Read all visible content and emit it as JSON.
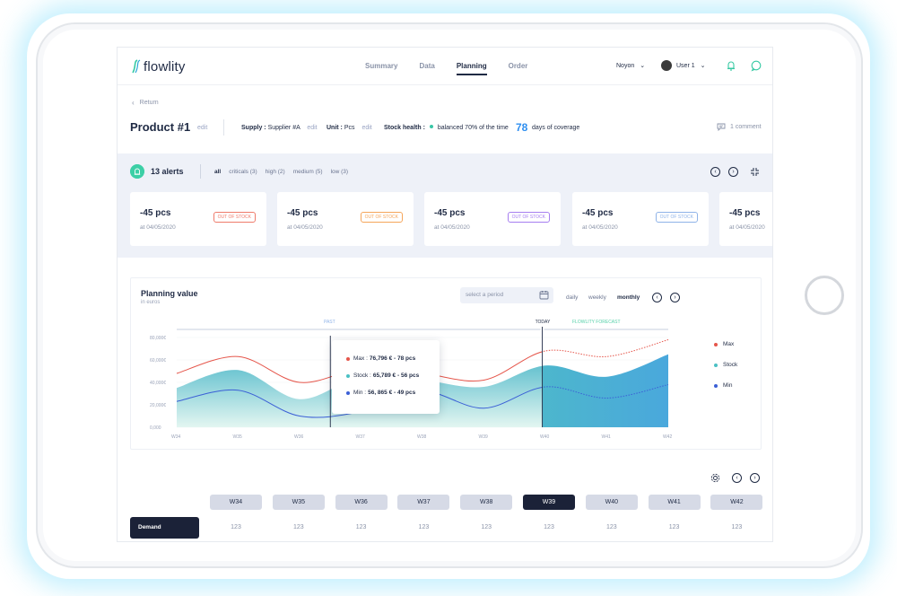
{
  "app": {
    "logo_text": "flowlity",
    "nav": [
      "Summary",
      "Data",
      "Planning",
      "Order"
    ],
    "active_nav": "Planning",
    "site": "Noyon",
    "user": "User 1"
  },
  "product": {
    "return_label": "Return",
    "title": "Product #1",
    "edit": "edit",
    "supply_label": "Supply :",
    "supply_value": "Supplier #A",
    "unit_label": "Unit :",
    "unit_value": "Pcs",
    "health_label": "Stock health :",
    "health_value": "balanced 70% of the time",
    "coverage_value": "78",
    "coverage_label": "days of coverage",
    "comments": "1 comment"
  },
  "alerts": {
    "title": "13 alerts",
    "filters": [
      "all",
      "criticals (3)",
      "high (2)",
      "medium (5)",
      "low (3)"
    ],
    "cards": [
      {
        "value": "-45 pcs",
        "date": "at 04/05/2020",
        "badge": "OUT OF STOCK",
        "color": "#ef7b6b"
      },
      {
        "value": "-45 pcs",
        "date": "at 04/05/2020",
        "badge": "OUT OF STOCK",
        "color": "#f5a55a"
      },
      {
        "value": "-45 pcs",
        "date": "at 04/05/2020",
        "badge": "OUT OF STOCK",
        "color": "#a67ef0"
      },
      {
        "value": "-45 pcs",
        "date": "at 04/05/2020",
        "badge": "OUT OF STOCK",
        "color": "#8fb3e8"
      },
      {
        "value": "-45 pcs",
        "date": "at 04/05/2020",
        "badge": "",
        "color": "#ffffff"
      }
    ]
  },
  "planning": {
    "title": "Planning value",
    "subtitle": "in euros",
    "period_placeholder": "select a period",
    "granularity": [
      "daily",
      "weekly",
      "monthly"
    ],
    "active_granularity": "monthly",
    "zones": {
      "past": "PAST",
      "today": "TODAY",
      "forecast": "FLOWLITY FORECAST"
    },
    "legend": [
      {
        "name": "Max",
        "color": "#e5554a"
      },
      {
        "name": "Stock",
        "color": "#4ac0c4"
      },
      {
        "name": "Min",
        "color": "#3b5fd6"
      }
    ],
    "tooltip": {
      "max_label": "Max :",
      "max_value": "76,796 € - 78 pcs",
      "stock_label": "Stock :",
      "stock_value": "65,789 € -  56 pcs",
      "min_label": "Min :",
      "min_value": "56, 865 € - 49 pcs"
    }
  },
  "chart_data": {
    "type": "area",
    "categories": [
      "W34",
      "W35",
      "W36",
      "W37",
      "W38",
      "W39",
      "W40",
      "W41",
      "W42"
    ],
    "yticks": [
      "0,000",
      "20,000€",
      "40,000€",
      "60,000€",
      "80,000€"
    ],
    "ylim": [
      0,
      80000
    ],
    "series": [
      {
        "name": "Max",
        "values": [
          48000,
          63000,
          40000,
          52000,
          48000,
          42000,
          68000,
          63000,
          78000
        ]
      },
      {
        "name": "Stock",
        "values": [
          35000,
          51000,
          25000,
          45000,
          42000,
          36000,
          55000,
          45000,
          65000
        ]
      },
      {
        "name": "Min",
        "values": [
          23000,
          33000,
          10000,
          14000,
          32000,
          17000,
          36000,
          26000,
          38000
        ]
      }
    ]
  },
  "weeks": {
    "labels": [
      "W34",
      "W35",
      "W36",
      "W37",
      "W38",
      "W39",
      "W40",
      "W41",
      "W42"
    ],
    "active": "W39",
    "row_label": "Demand",
    "demand": [
      "123",
      "123",
      "123",
      "123",
      "123",
      "123",
      "123",
      "123",
      "123"
    ]
  }
}
